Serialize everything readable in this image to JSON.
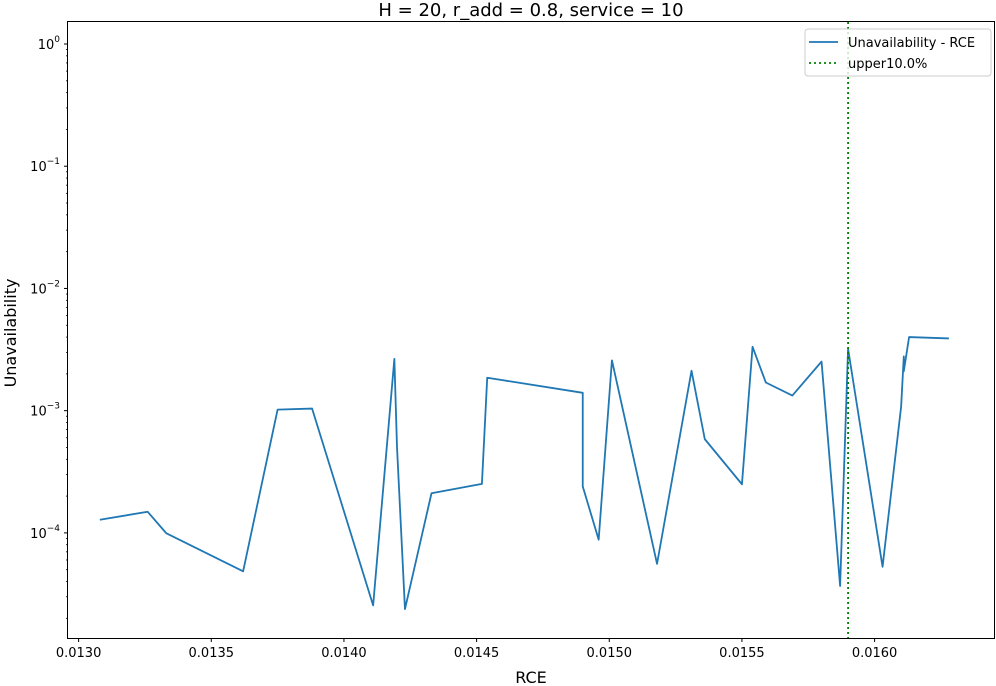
{
  "chart_data": {
    "type": "line",
    "title": "H = 20, r_add = 0.8, service = 10",
    "xlabel": "RCE",
    "ylabel": "Unavailability",
    "xlim": [
      0.01296,
      0.01645
    ],
    "ylim_log10": [
      -4.86,
      0.18
    ],
    "yscale": "log",
    "x_ticks": [
      {
        "value": 0.013,
        "label": "0.0130"
      },
      {
        "value": 0.0135,
        "label": "0.0135"
      },
      {
        "value": 0.014,
        "label": "0.0140"
      },
      {
        "value": 0.0145,
        "label": "0.0145"
      },
      {
        "value": 0.015,
        "label": "0.0150"
      },
      {
        "value": 0.0155,
        "label": "0.0155"
      },
      {
        "value": 0.016,
        "label": "0.0160"
      }
    ],
    "y_ticks": [
      {
        "exp": 0,
        "label": "10",
        "sup": "0"
      },
      {
        "exp": -1,
        "label": "10",
        "sup": "−1"
      },
      {
        "exp": -2,
        "label": "10",
        "sup": "−2"
      },
      {
        "exp": -3,
        "label": "10",
        "sup": "−3"
      },
      {
        "exp": -4,
        "label": "10",
        "sup": "−4"
      }
    ],
    "series": [
      {
        "name": "Unavailability - RCE",
        "color": "#1f77b4",
        "style": "solid",
        "points": [
          [
            0.01308,
            0.000128
          ],
          [
            0.01326,
            0.000149
          ],
          [
            0.01333,
            9.95e-05
          ],
          [
            0.01362,
            4.85e-05
          ],
          [
            0.01375,
            0.00102
          ],
          [
            0.01388,
            0.00104
          ],
          [
            0.01411,
            2.55e-05
          ],
          [
            0.01419,
            0.00265
          ],
          [
            0.0142,
            0.000502
          ],
          [
            0.01423,
            2.38e-05
          ],
          [
            0.01433,
            0.000211
          ],
          [
            0.01452,
            0.000252
          ],
          [
            0.01454,
            0.00186
          ],
          [
            0.0149,
            0.0014
          ],
          [
            0.0149,
            0.00024
          ],
          [
            0.01496,
            8.8e-05
          ],
          [
            0.01501,
            0.00258
          ],
          [
            0.01518,
            5.58e-05
          ],
          [
            0.01531,
            0.00212
          ],
          [
            0.01536,
            0.000585
          ],
          [
            0.0155,
            0.00025
          ],
          [
            0.01554,
            0.00333
          ],
          [
            0.01559,
            0.0017
          ],
          [
            0.01569,
            0.00133
          ],
          [
            0.0158,
            0.00252
          ],
          [
            0.01587,
            3.68e-05
          ],
          [
            0.0159,
            0.0032
          ],
          [
            0.01603,
            5.28e-05
          ],
          [
            0.0161,
            0.00108
          ],
          [
            0.01611,
            0.00278
          ],
          [
            0.01611,
            0.0021
          ],
          [
            0.01613,
            0.004
          ],
          [
            0.01628,
            0.0039
          ]
        ]
      }
    ],
    "vline": {
      "name": "upper10.0%",
      "x": 0.0159,
      "color": "#008000",
      "style": "dotted"
    },
    "grid": false,
    "legend_position": "top-right"
  }
}
